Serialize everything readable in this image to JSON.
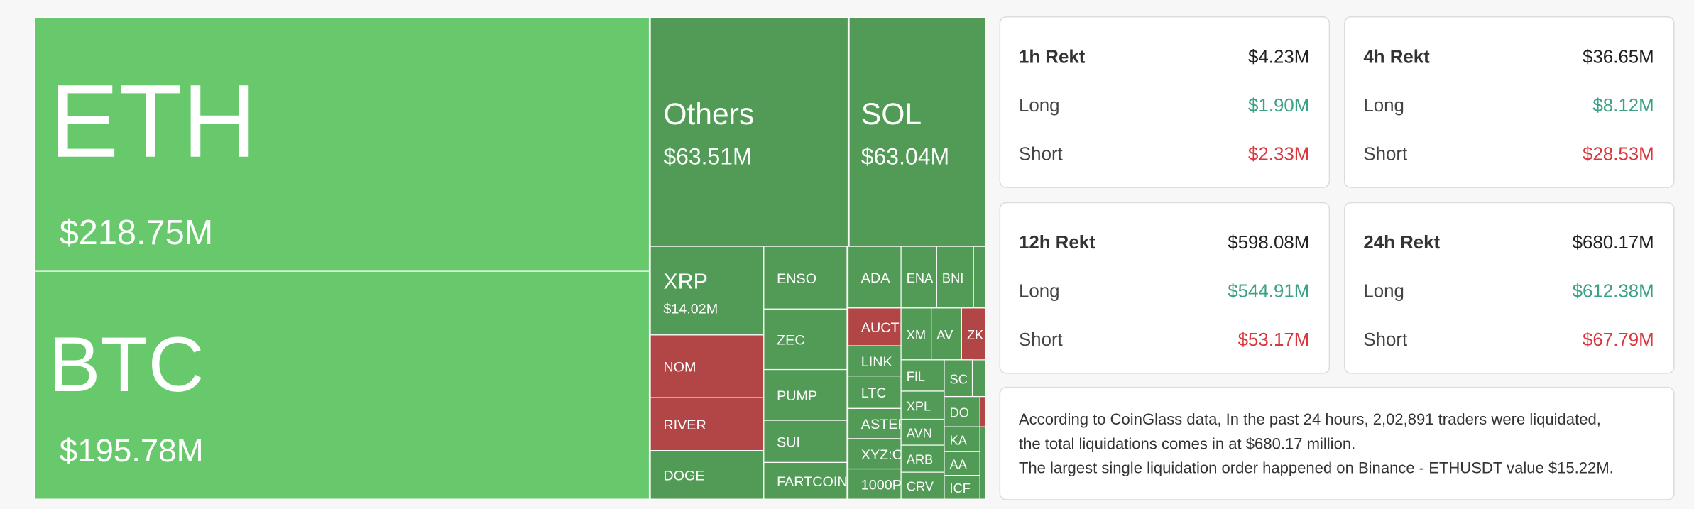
{
  "treemap": {
    "tiles": [
      {
        "label": "ETH",
        "value": "$218.75M",
        "color": "#67c96b"
      },
      {
        "label": "BTC",
        "value": "$195.78M",
        "color": "#67c96b"
      },
      {
        "label": "Others",
        "value": "$63.51M",
        "color": "#529b56"
      },
      {
        "label": "SOL",
        "value": "$63.04M",
        "color": "#529b56"
      },
      {
        "label": "XRP",
        "value": "$14.02M",
        "color": "#529b56"
      },
      {
        "label": "NOM",
        "color": "#b24646"
      },
      {
        "label": "RIVER",
        "color": "#b24646"
      },
      {
        "label": "DOGE",
        "color": "#529b56"
      },
      {
        "label": "ENSO",
        "color": "#529b56"
      },
      {
        "label": "ZEC",
        "color": "#529b56"
      },
      {
        "label": "PUMP",
        "color": "#529b56"
      },
      {
        "label": "SUI",
        "color": "#529b56"
      },
      {
        "label": "FARTCOIN",
        "color": "#529b56"
      },
      {
        "label": "ADA",
        "color": "#529b56"
      },
      {
        "label": "ENA",
        "color": "#529b56"
      },
      {
        "label": "BNI",
        "color": "#529b56"
      },
      {
        "label": "AUCTI",
        "color": "#b24646"
      },
      {
        "label": "LINK",
        "color": "#529b56"
      },
      {
        "label": "LTC",
        "color": "#529b56"
      },
      {
        "label": "ASTER",
        "color": "#529b56"
      },
      {
        "label": "XYZ:C",
        "color": "#529b56"
      },
      {
        "label": "1000P",
        "color": "#529b56"
      },
      {
        "label": "XM",
        "color": "#529b56"
      },
      {
        "label": "AV",
        "color": "#529b56"
      },
      {
        "label": "ZK",
        "color": "#b24646"
      },
      {
        "label": "FIL",
        "color": "#529b56"
      },
      {
        "label": "XPL",
        "color": "#529b56"
      },
      {
        "label": "AVN",
        "color": "#529b56"
      },
      {
        "label": "ARB",
        "color": "#529b56"
      },
      {
        "label": "CRV",
        "color": "#529b56"
      },
      {
        "label": "SC",
        "color": "#529b56"
      },
      {
        "label": "DO",
        "color": "#529b56"
      },
      {
        "label": "KA",
        "color": "#529b56"
      },
      {
        "label": "AA",
        "color": "#529b56"
      },
      {
        "label": "ICF",
        "color": "#529b56"
      }
    ]
  },
  "cards": [
    {
      "title": "1h Rekt",
      "total": "$4.23M",
      "long_label": "Long",
      "long": "$1.90M",
      "short_label": "Short",
      "short": "$2.33M"
    },
    {
      "title": "4h Rekt",
      "total": "$36.65M",
      "long_label": "Long",
      "long": "$8.12M",
      "short_label": "Short",
      "short": "$28.53M"
    },
    {
      "title": "12h Rekt",
      "total": "$598.08M",
      "long_label": "Long",
      "long": "$544.91M",
      "short_label": "Short",
      "short": "$53.17M"
    },
    {
      "title": "24h Rekt",
      "total": "$680.17M",
      "long_label": "Long",
      "long": "$612.38M",
      "short_label": "Short",
      "short": "$67.79M"
    }
  ],
  "description": {
    "lines": [
      "According to CoinGlass data, In the past 24 hours, 2,02,891 traders were liquidated,",
      "the total liquidations comes in at $680.17 million.",
      "The largest single liquidation order happened on Binance - ETHUSDT value $15.22M."
    ]
  }
}
